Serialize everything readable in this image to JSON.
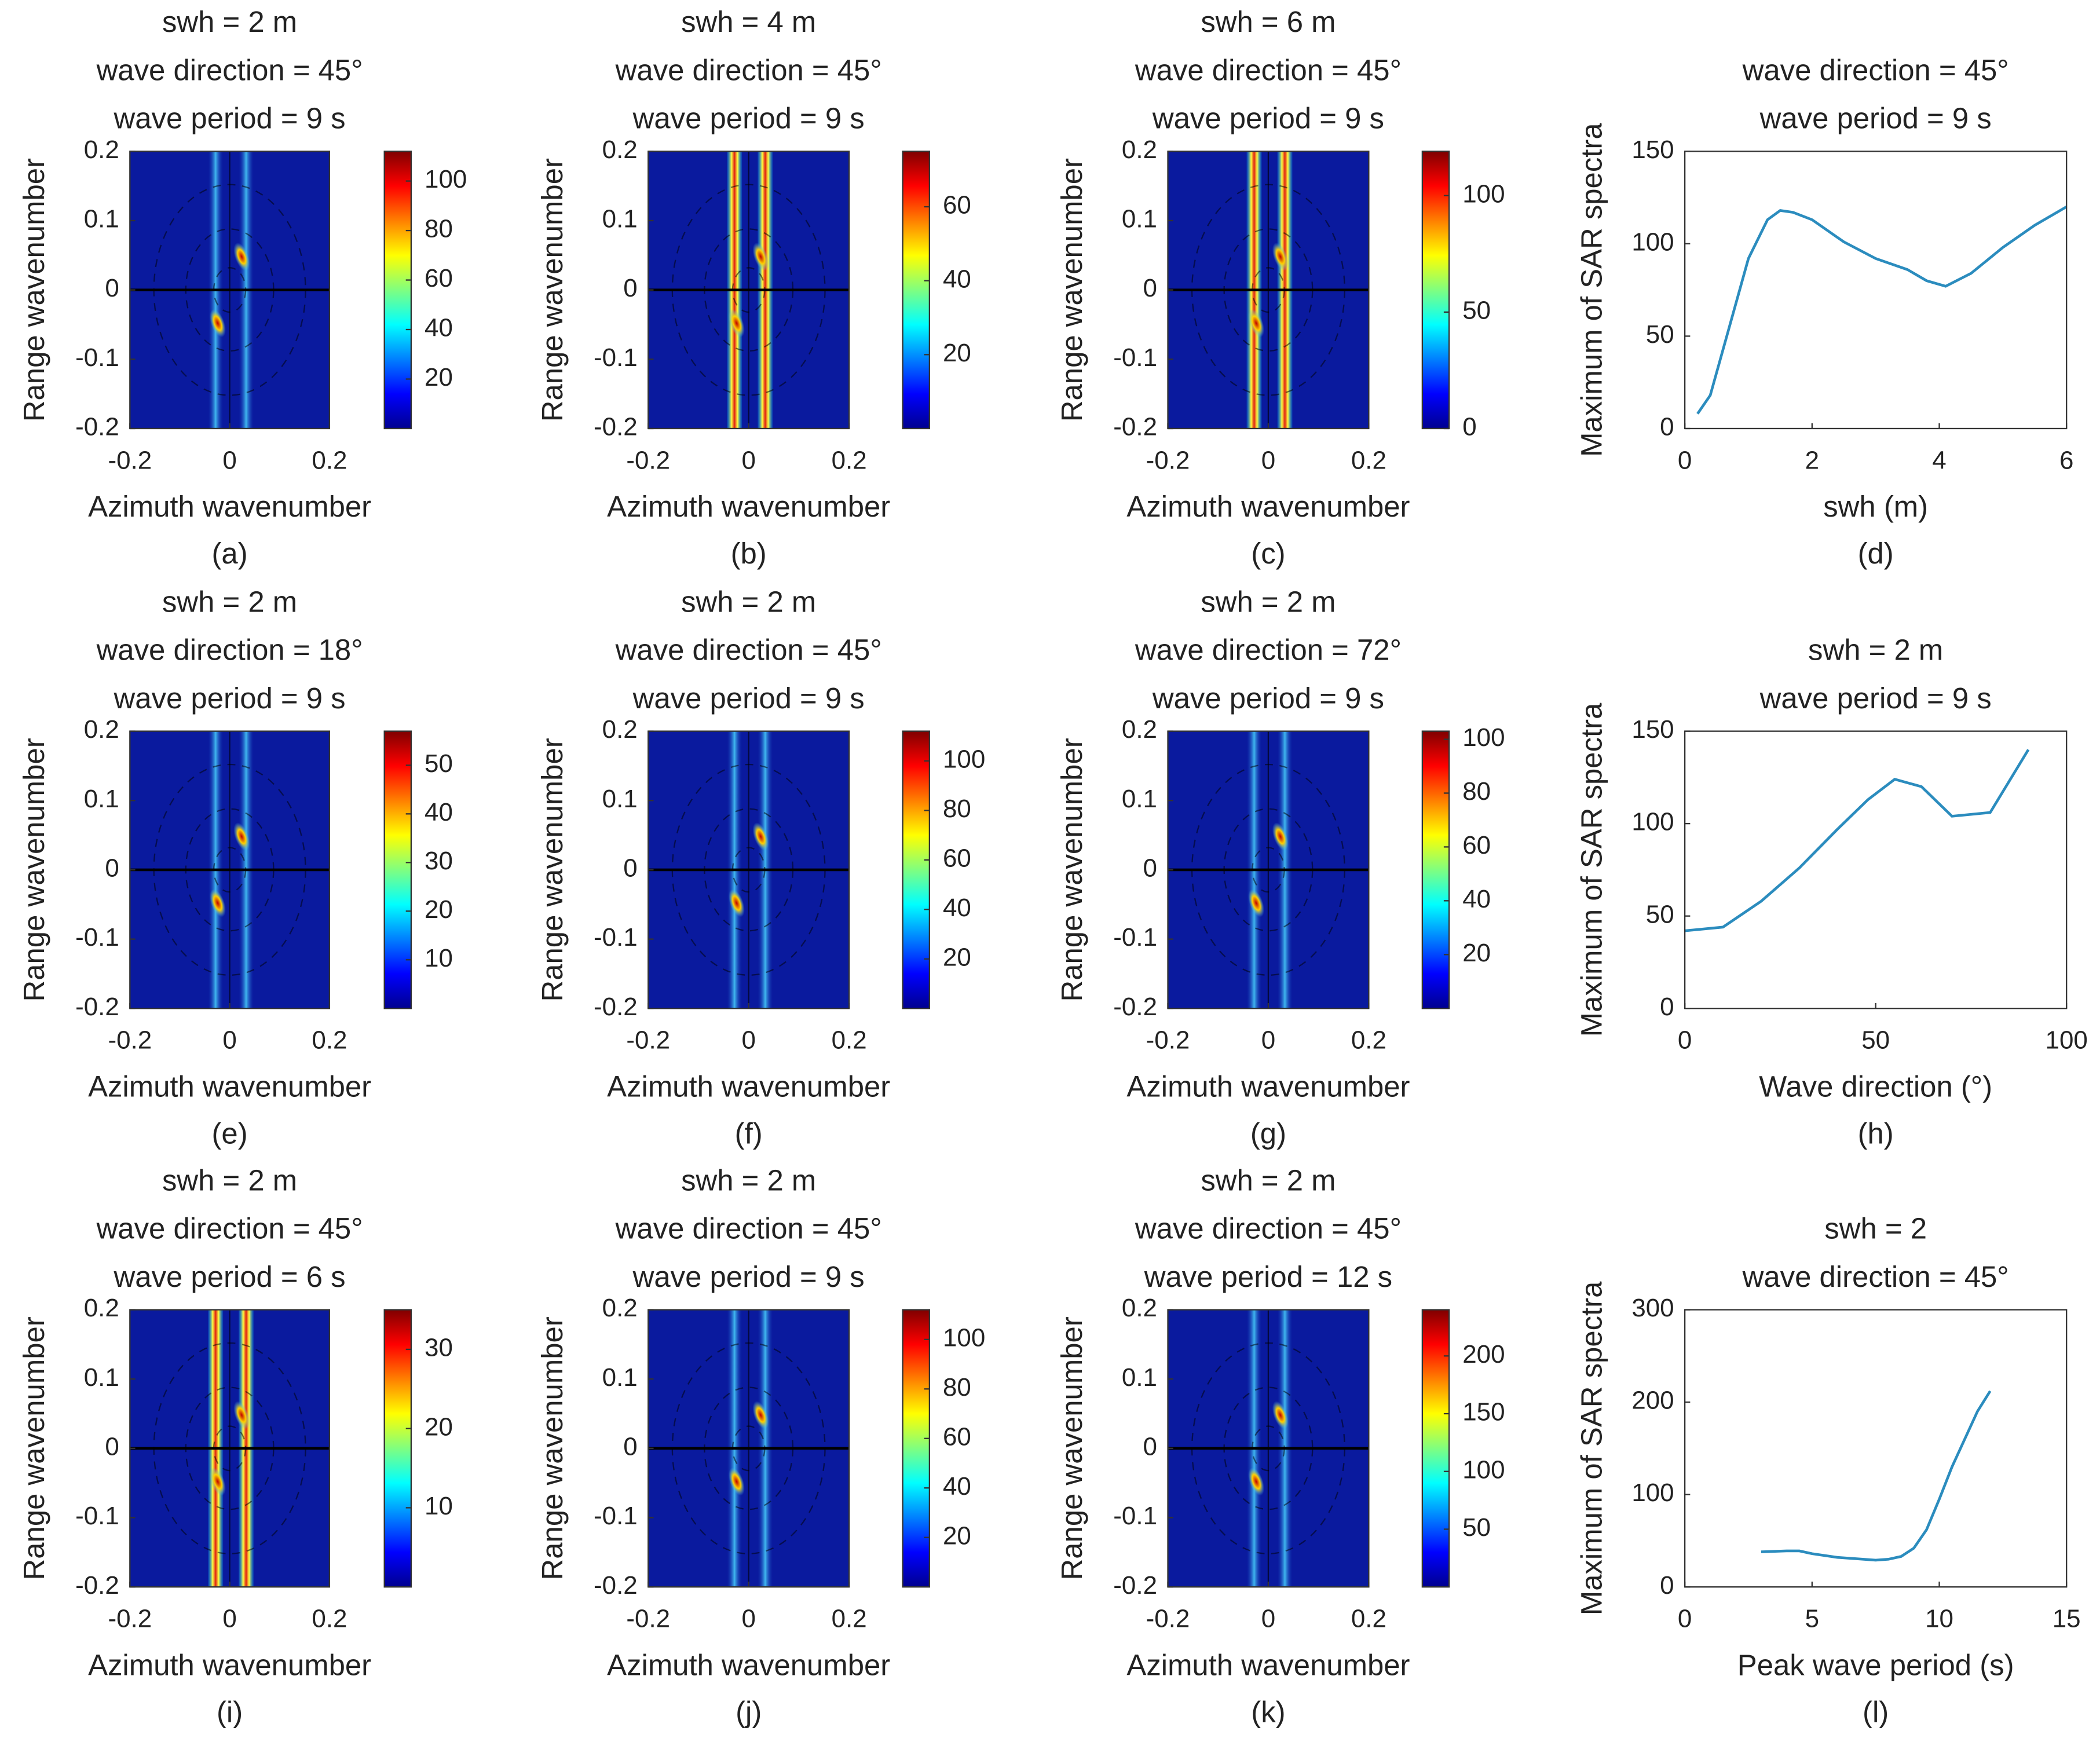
{
  "chart_data": [
    {
      "type": "heatmap",
      "title": [
        "swh = 2 m",
        "wave direction = 45°",
        "wave period = 9 s"
      ],
      "xlabel": "Azimuth wavenumber",
      "ylabel": "Range wavenumber",
      "caption": "(a)",
      "xlim": [
        -0.2,
        0.2
      ],
      "ylim": [
        -0.2,
        0.2
      ],
      "xticks": [
        -0.2,
        0,
        0.2
      ],
      "yticks": [
        -0.2,
        -0.1,
        0,
        0.1,
        0.2
      ],
      "colormap": "jet",
      "clim": [
        0,
        112
      ],
      "cticks": [
        20,
        40,
        60,
        80,
        100
      ]
    },
    {
      "type": "heatmap",
      "title": [
        "swh = 4 m",
        "wave direction = 45°",
        "wave period = 9 s"
      ],
      "xlabel": "Azimuth wavenumber",
      "ylabel": "Range wavenumber",
      "caption": "(b)",
      "xlim": [
        -0.2,
        0.2
      ],
      "ylim": [
        -0.2,
        0.2
      ],
      "xticks": [
        -0.2,
        0,
        0.2
      ],
      "yticks": [
        -0.2,
        -0.1,
        0,
        0.1,
        0.2
      ],
      "colormap": "jet",
      "clim": [
        0,
        75
      ],
      "cticks": [
        20,
        40,
        60
      ]
    },
    {
      "type": "heatmap",
      "title": [
        "swh = 6 m",
        "wave direction = 45°",
        "wave period = 9 s"
      ],
      "xlabel": "Azimuth wavenumber",
      "ylabel": "Range wavenumber",
      "caption": "(c)",
      "xlim": [
        -0.2,
        0.2
      ],
      "ylim": [
        -0.2,
        0.2
      ],
      "xticks": [
        -0.2,
        0,
        0.2
      ],
      "yticks": [
        -0.2,
        -0.1,
        0,
        0.1,
        0.2
      ],
      "colormap": "jet",
      "clim": [
        0,
        119
      ],
      "cticks": [
        0,
        50,
        100
      ]
    },
    {
      "type": "line",
      "title": [
        "wave direction = 45°",
        "wave period = 9 s"
      ],
      "xlabel": "swh (m)",
      "ylabel": "Maximum of SAR spectra",
      "caption": "(d)",
      "x": [
        0.2,
        0.4,
        0.7,
        1,
        1.3,
        1.5,
        1.7,
        2,
        2.5,
        3,
        3.5,
        3.8,
        4.1,
        4.5,
        5,
        5.5,
        6
      ],
      "values": [
        8,
        18,
        55,
        92,
        113,
        118,
        117,
        113,
        101,
        92,
        86,
        80,
        77,
        84,
        98,
        110,
        120
      ],
      "color": "#2b8cbe",
      "xlim": [
        0,
        6
      ],
      "ylim": [
        0,
        150
      ],
      "xticks": [
        0,
        2,
        4,
        6
      ],
      "yticks": [
        0,
        50,
        100,
        150
      ]
    },
    {
      "type": "heatmap",
      "title": [
        "swh = 2 m",
        "wave direction = 18°",
        "wave period = 9 s"
      ],
      "xlabel": "Azimuth wavenumber",
      "ylabel": "Range wavenumber",
      "caption": "(e)",
      "xlim": [
        -0.2,
        0.2
      ],
      "ylim": [
        -0.2,
        0.2
      ],
      "xticks": [
        -0.2,
        0,
        0.2
      ],
      "yticks": [
        -0.2,
        -0.1,
        0,
        0.1,
        0.2
      ],
      "colormap": "jet",
      "clim": [
        0,
        57
      ],
      "cticks": [
        10,
        20,
        30,
        40,
        50
      ]
    },
    {
      "type": "heatmap",
      "title": [
        "swh = 2 m",
        "wave direction = 45°",
        "wave period = 9 s"
      ],
      "xlabel": "Azimuth wavenumber",
      "ylabel": "Range wavenumber",
      "caption": "(f)",
      "xlim": [
        -0.2,
        0.2
      ],
      "ylim": [
        -0.2,
        0.2
      ],
      "xticks": [
        -0.2,
        0,
        0.2
      ],
      "yticks": [
        -0.2,
        -0.1,
        0,
        0.1,
        0.2
      ],
      "colormap": "jet",
      "clim": [
        0,
        112
      ],
      "cticks": [
        20,
        40,
        60,
        80,
        100
      ]
    },
    {
      "type": "heatmap",
      "title": [
        "swh = 2 m",
        "wave direction = 72°",
        "wave period = 9 s"
      ],
      "xlabel": "Azimuth wavenumber",
      "ylabel": "Range wavenumber",
      "caption": "(g)",
      "xlim": [
        -0.2,
        0.2
      ],
      "ylim": [
        -0.2,
        0.2
      ],
      "xticks": [
        -0.2,
        0,
        0.2
      ],
      "yticks": [
        -0.2,
        -0.1,
        0,
        0.1,
        0.2
      ],
      "colormap": "jet",
      "clim": [
        0,
        103
      ],
      "cticks": [
        20,
        40,
        60,
        80,
        100
      ]
    },
    {
      "type": "line",
      "title": [
        "swh = 2 m",
        "wave period = 9 s"
      ],
      "xlabel": "Wave direction (°)",
      "ylabel": "Maximum of SAR spectra",
      "caption": "(h)",
      "x": [
        0,
        10,
        20,
        30,
        40,
        48,
        55,
        62,
        70,
        80,
        90
      ],
      "values": [
        42,
        44,
        58,
        76,
        97,
        113,
        124,
        120,
        104,
        106,
        140
      ],
      "color": "#2b8cbe",
      "xlim": [
        0,
        100
      ],
      "ylim": [
        0,
        150
      ],
      "xticks": [
        0,
        50,
        100
      ],
      "yticks": [
        0,
        50,
        100,
        150
      ]
    },
    {
      "type": "heatmap",
      "title": [
        "swh = 2 m",
        "wave direction = 45°",
        "wave period = 6 s"
      ],
      "xlabel": "Azimuth wavenumber",
      "ylabel": "Range wavenumber",
      "caption": "(i)",
      "xlim": [
        -0.2,
        0.2
      ],
      "ylim": [
        -0.2,
        0.2
      ],
      "xticks": [
        -0.2,
        0,
        0.2
      ],
      "yticks": [
        -0.2,
        -0.1,
        0,
        0.1,
        0.2
      ],
      "colormap": "jet",
      "clim": [
        0,
        35
      ],
      "cticks": [
        10,
        20,
        30
      ]
    },
    {
      "type": "heatmap",
      "title": [
        "swh = 2 m",
        "wave direction = 45°",
        "wave period = 9 s"
      ],
      "xlabel": "Azimuth wavenumber",
      "ylabel": "Range wavenumber",
      "caption": "(j)",
      "xlim": [
        -0.2,
        0.2
      ],
      "ylim": [
        -0.2,
        0.2
      ],
      "xticks": [
        -0.2,
        0,
        0.2
      ],
      "yticks": [
        -0.2,
        -0.1,
        0,
        0.1,
        0.2
      ],
      "colormap": "jet",
      "clim": [
        0,
        112
      ],
      "cticks": [
        20,
        40,
        60,
        80,
        100
      ]
    },
    {
      "type": "heatmap",
      "title": [
        "swh = 2 m",
        "wave direction = 45°",
        "wave period = 12 s"
      ],
      "xlabel": "Azimuth wavenumber",
      "ylabel": "Range wavenumber",
      "caption": "(k)",
      "xlim": [
        -0.2,
        0.2
      ],
      "ylim": [
        -0.2,
        0.2
      ],
      "xticks": [
        -0.2,
        0,
        0.2
      ],
      "yticks": [
        -0.2,
        -0.1,
        0,
        0.1,
        0.2
      ],
      "colormap": "jet",
      "clim": [
        0,
        240
      ],
      "cticks": [
        50,
        100,
        150,
        200
      ]
    },
    {
      "type": "line",
      "title": [
        "swh = 2",
        "wave direction = 45°"
      ],
      "xlabel": "Peak wave period (s)",
      "ylabel": "Maximum of SAR spectra",
      "caption": "(l)",
      "x": [
        3,
        4,
        4.5,
        5,
        6,
        7,
        7.5,
        8,
        8.5,
        9,
        9.5,
        10,
        10.5,
        11,
        11.5,
        12
      ],
      "values": [
        38,
        39,
        39,
        36,
        32,
        30,
        29,
        30,
        33,
        42,
        62,
        95,
        130,
        160,
        190,
        212
      ],
      "color": "#2b8cbe",
      "xlim": [
        0,
        15
      ],
      "ylim": [
        0,
        300
      ],
      "xticks": [
        0,
        5,
        10,
        15
      ],
      "yticks": [
        0,
        100,
        200,
        300
      ]
    }
  ]
}
